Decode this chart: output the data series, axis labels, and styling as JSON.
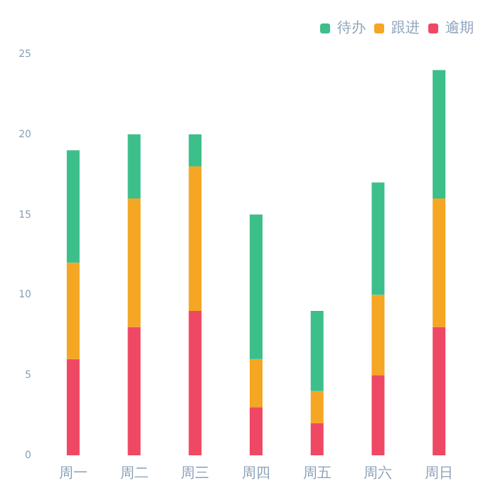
{
  "chart_data": {
    "type": "bar",
    "stacked": true,
    "categories": [
      "周一",
      "周二",
      "周三",
      "周四",
      "周五",
      "周六",
      "周日"
    ],
    "series": [
      {
        "name": "逾期",
        "color": "#ef4864",
        "values": [
          6,
          8,
          9,
          3,
          2,
          5,
          8
        ]
      },
      {
        "name": "跟进",
        "color": "#f5a623",
        "values": [
          6,
          8,
          9,
          3,
          2,
          5,
          8
        ]
      },
      {
        "name": "待办",
        "color": "#3cbf8a",
        "values": [
          7,
          4,
          2,
          9,
          5,
          7,
          8
        ]
      }
    ],
    "ylim": [
      0,
      25
    ],
    "yticks": [
      0,
      5,
      10,
      15,
      20,
      25
    ],
    "grid": false,
    "legend": "top right"
  }
}
